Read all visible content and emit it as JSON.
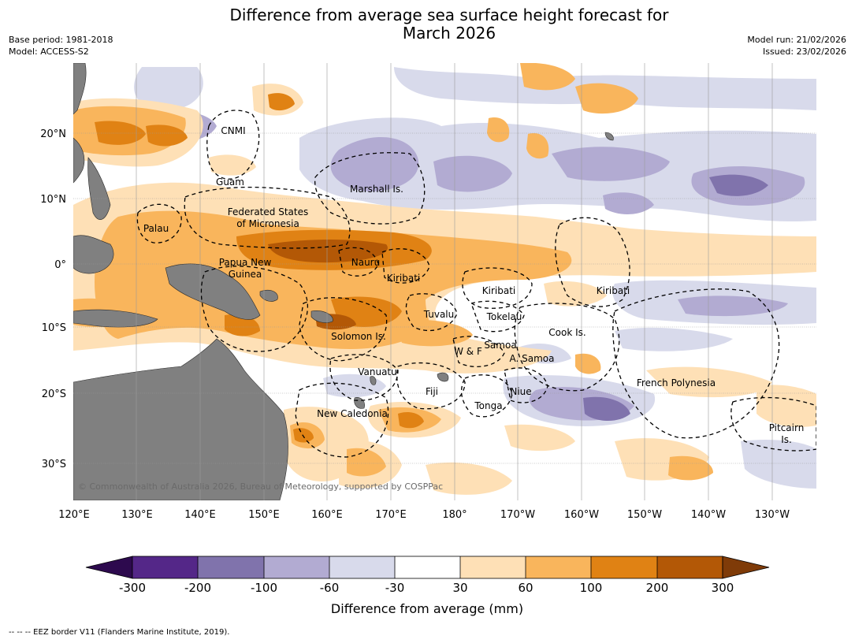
{
  "title": {
    "line1": "Difference from average sea surface height forecast for",
    "line2": "March 2026"
  },
  "meta": {
    "base_period": "Base period: 1981-2018",
    "model": "Model: ACCESS-S2",
    "model_run": "Model run: 21/02/2026",
    "issued": "Issued: 23/02/2026"
  },
  "map": {
    "lat_labels": [
      "20°N",
      "10°N",
      "0°",
      "10°S",
      "20°S",
      "30°S"
    ],
    "lon_labels": [
      "120°E",
      "130°E",
      "140°E",
      "150°E",
      "160°E",
      "170°E",
      "180°",
      "170°W",
      "160°W",
      "150°W",
      "140°W",
      "130°W"
    ],
    "regions": {
      "cnmi": "CNMI",
      "guam": "Guam",
      "marshall": "Marshall Is.",
      "fsm_1": "Federated States",
      "fsm_2": "of Micronesia",
      "palau": "Palau",
      "png_1": "Papua New",
      "png_2": "Guinea",
      "nauru": "Nauru",
      "kiribati_w": "Kiribati",
      "kiribati_c": "Kiribati",
      "kiribati_e": "Kiribati",
      "tuvalu": "Tuvalu",
      "tokelau": "Tokelau",
      "solomon": "Solomon Is.",
      "samoa": "Samoa",
      "wallis": "W & F",
      "am_samoa": "A. Samoa",
      "cook": "Cook Is.",
      "vanuatu": "Vanuatu",
      "fiji": "Fiji",
      "niue": "Niue",
      "tonga": "Tonga",
      "new_caledonia": "New Caledonia",
      "french_polynesia": "French Polynesia",
      "pitcairn_1": "Pitcairn",
      "pitcairn_2": "Is."
    },
    "copyright": "© Commonwealth of Australia 2026, Bureau of Meteorology, supported by COSPPac"
  },
  "colorbar": {
    "title": "Difference from average (mm)",
    "tick_labels": [
      "-300",
      "-200",
      "-100",
      "-60",
      "-30",
      "30",
      "60",
      "100",
      "200",
      "300"
    ],
    "colors": {
      "under": "#2d0a4e",
      "c1": "#542788",
      "c2": "#8073ac",
      "c3": "#b2abd2",
      "c4": "#d8daeb",
      "neutral": "#ffffff",
      "w1": "#fee0b6",
      "w2": "#f9b55c",
      "w3": "#e08214",
      "w4": "#b35806",
      "over": "#7f3b08"
    },
    "land": "#808080"
  },
  "footnote": "--  --  -- EEZ border V11 (Flanders Marine Institute, 2019)."
}
